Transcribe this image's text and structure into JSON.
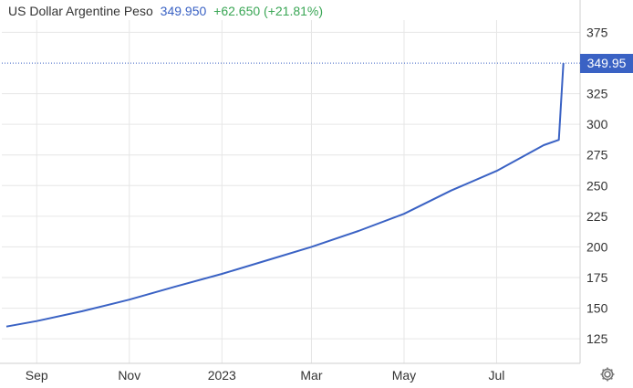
{
  "header": {
    "title": "US Dollar Argentine Peso",
    "price": "349.950",
    "change": "+62.650 (+21.81%)"
  },
  "last_price_label": "349.95",
  "icons": {
    "settings": "gear-icon"
  },
  "colors": {
    "line": "#3a62c4",
    "badge": "#3a62c4",
    "change_positive": "#3aa655",
    "grid": "#e6e6e6"
  },
  "chart_data": {
    "type": "line",
    "title": "US Dollar Argentine Peso",
    "xlabel": "",
    "ylabel": "",
    "x_ticks": [
      "Sep",
      "Nov",
      "2023",
      "Mar",
      "May",
      "Jul"
    ],
    "y_ticks": [
      125,
      150,
      175,
      200,
      225,
      250,
      275,
      300,
      325,
      375
    ],
    "ylim": [
      105,
      385
    ],
    "grid": true,
    "y_axis_position": "right",
    "series": [
      {
        "name": "",
        "x": [
          "2022-08-12",
          "2022-09-01",
          "2022-10-01",
          "2022-11-01",
          "2022-12-01",
          "2023-01-01",
          "2023-02-01",
          "2023-03-01",
          "2023-04-01",
          "2023-05-01",
          "2023-06-01",
          "2023-07-01",
          "2023-08-01",
          "2023-08-11",
          "2023-08-14"
        ],
        "y": [
          135.0,
          139.5,
          147.5,
          157.0,
          167.5,
          178.0,
          189.5,
          200.0,
          213.0,
          227.0,
          246.0,
          262.0,
          283.0,
          287.3,
          349.95
        ]
      }
    ],
    "last_value": 349.95
  }
}
